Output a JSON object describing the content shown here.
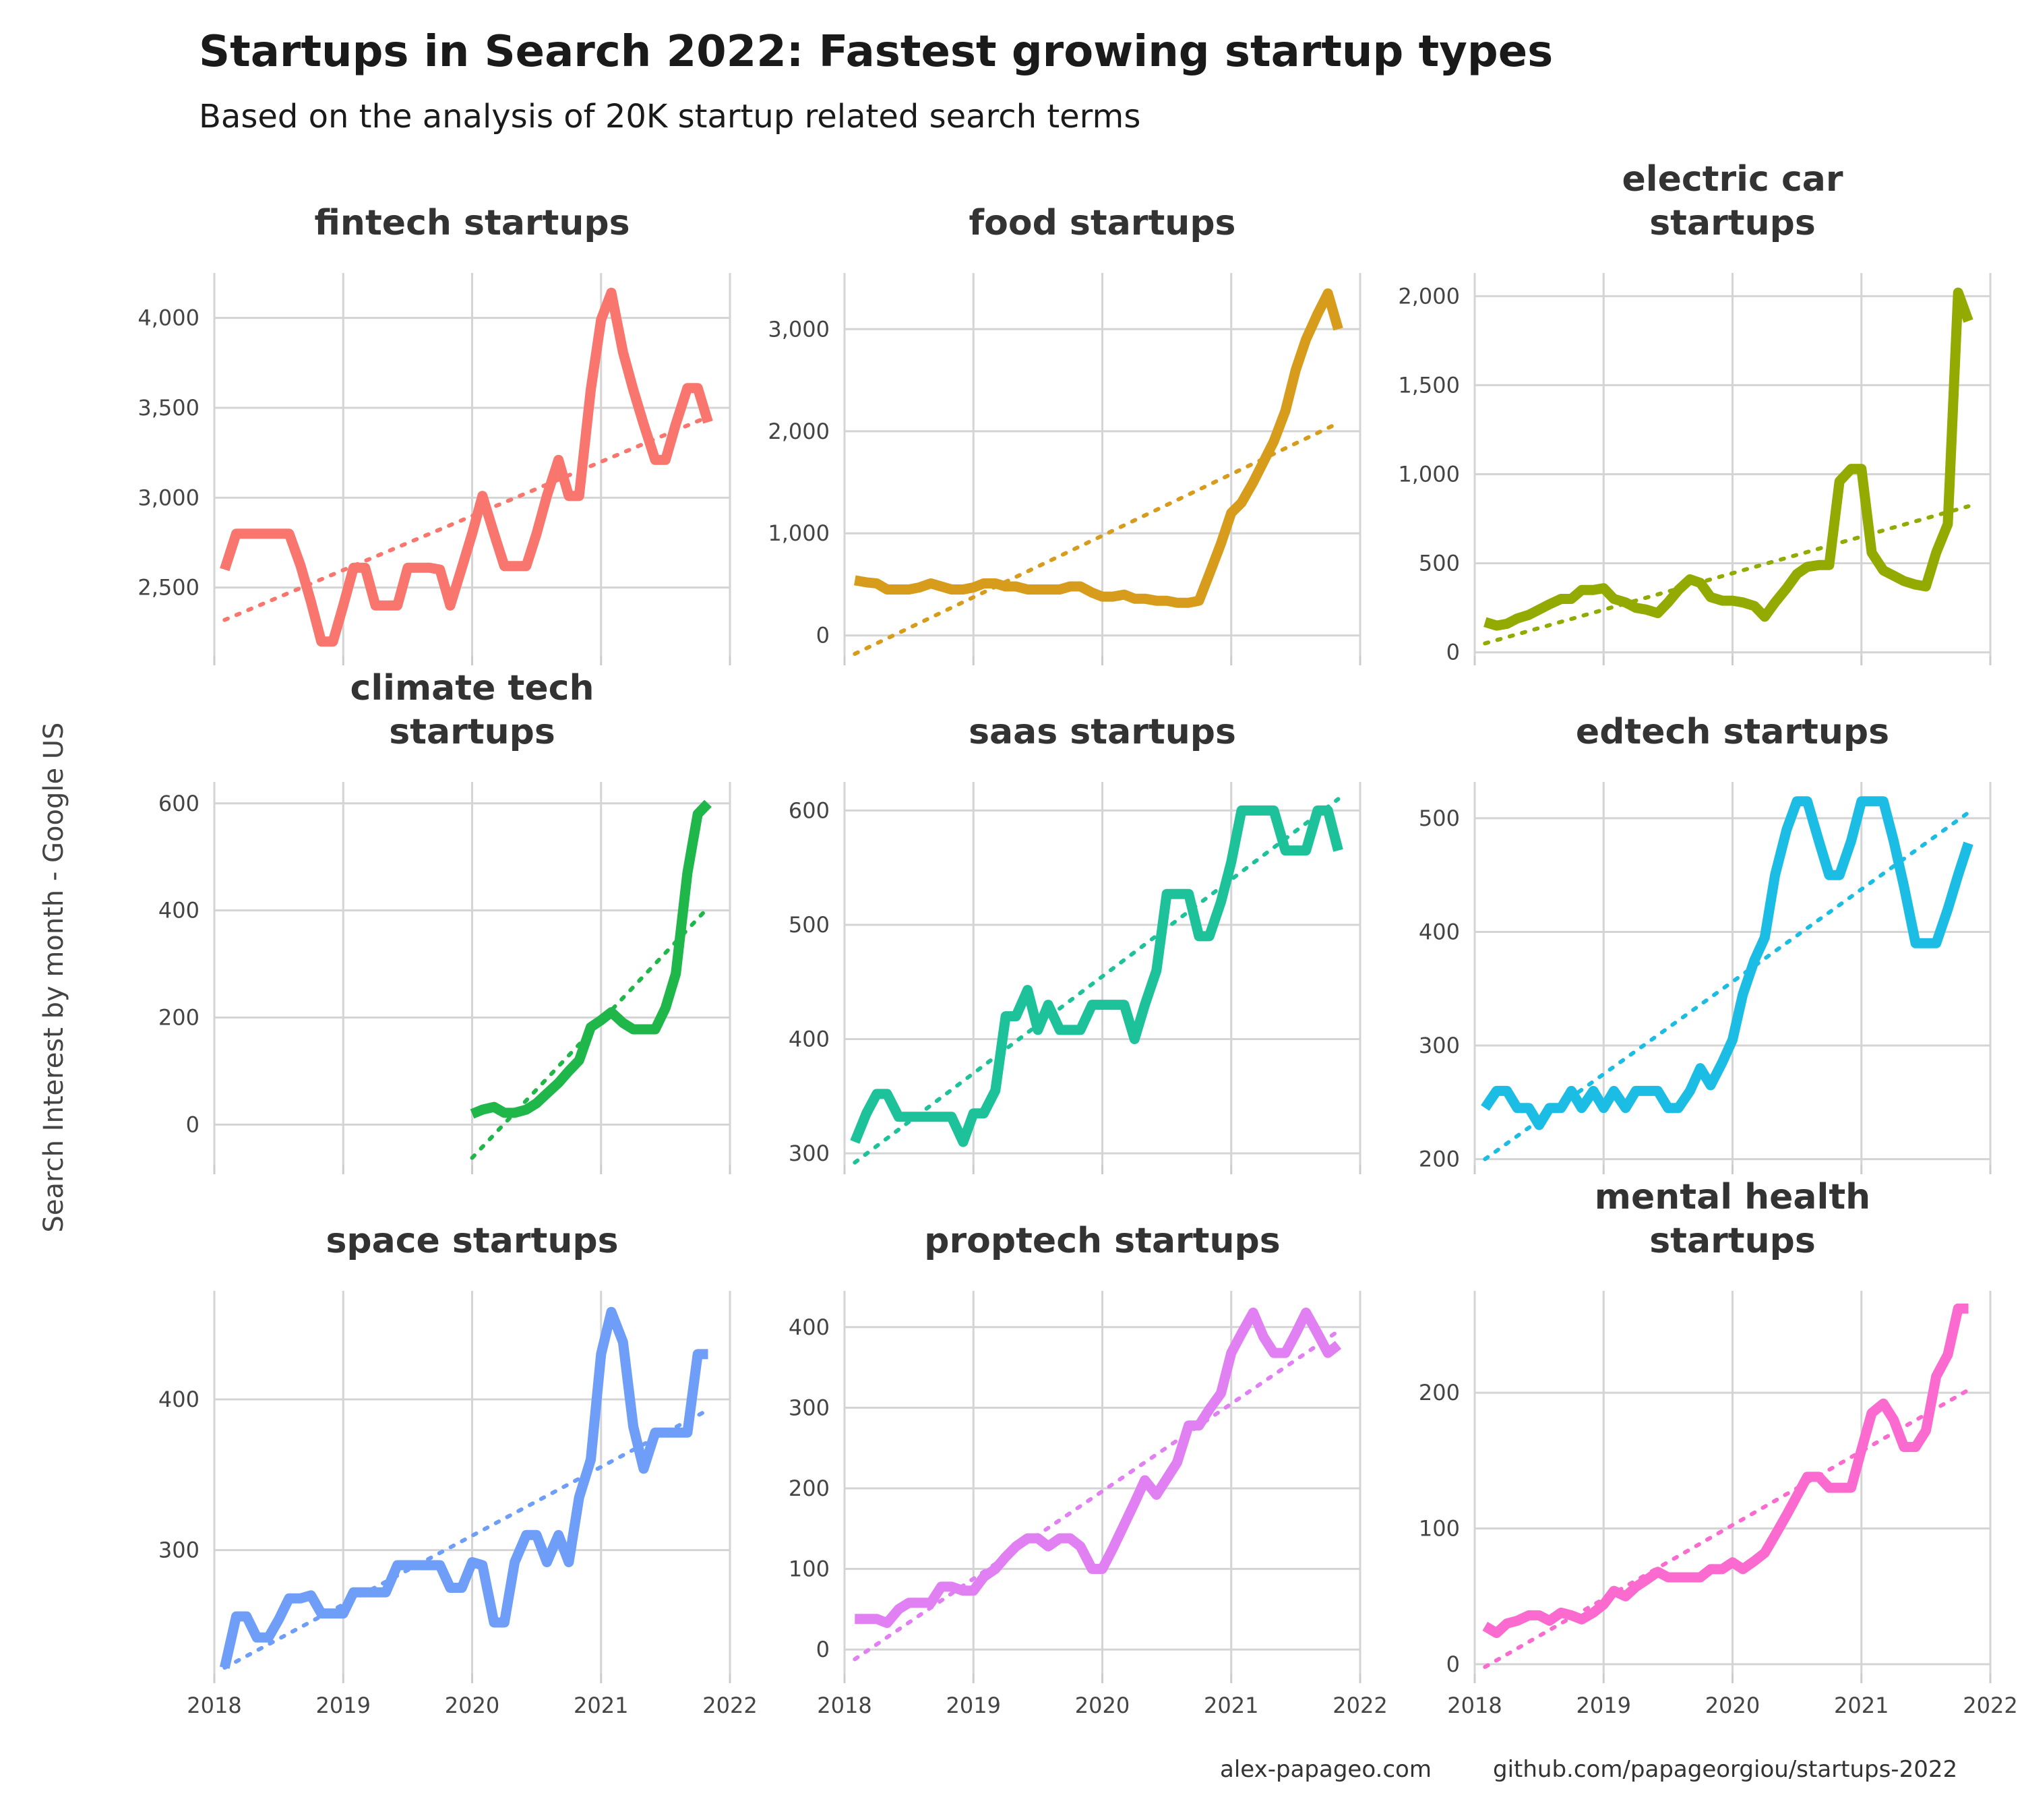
{
  "title": "Startups in Search 2022: Fastest growing startup types",
  "subtitle": "Based on the analysis of 20K startup related search terms",
  "y_axis_label": "Search Interest by month - Google US",
  "captions": [
    "alex-papageo.com",
    "github.com/papageorgiou/startups-2022"
  ],
  "chart_data": [
    {
      "type": "line",
      "title": "fintech startups",
      "title_lines": [
        "fintech startups"
      ],
      "color": "#F8766D",
      "xlim": [
        2018,
        2022
      ],
      "x_ticks": [
        2018,
        2019,
        2020,
        2021,
        2022
      ],
      "ylim": [
        2120,
        4250
      ],
      "y_ticks": [
        2500,
        3000,
        3500,
        4000
      ],
      "y_tick_labels": [
        "2,500",
        "3,000",
        "3,500",
        "4,000"
      ],
      "x": [
        2018.08,
        2018.17,
        2018.25,
        2018.33,
        2018.42,
        2018.5,
        2018.58,
        2018.67,
        2018.75,
        2018.83,
        2018.92,
        2019.0,
        2019.08,
        2019.17,
        2019.25,
        2019.33,
        2019.42,
        2019.5,
        2019.58,
        2019.67,
        2019.75,
        2019.83,
        2019.92,
        2020.0,
        2020.08,
        2020.17,
        2020.25,
        2020.33,
        2020.42,
        2020.5,
        2020.58,
        2020.67,
        2020.75,
        2020.83,
        2020.92,
        2021.0,
        2021.08,
        2021.17,
        2021.25,
        2021.33,
        2021.42,
        2021.5,
        2021.58,
        2021.67,
        2021.75,
        2021.83
      ],
      "values": [
        2600,
        2800,
        2800,
        2800,
        2800,
        2800,
        2800,
        2620,
        2420,
        2200,
        2200,
        2400,
        2610,
        2610,
        2400,
        2400,
        2400,
        2610,
        2610,
        2610,
        2600,
        2400,
        2610,
        2800,
        3010,
        2800,
        2620,
        2620,
        2620,
        2800,
        3010,
        3210,
        3010,
        3010,
        3600,
        3990,
        4140,
        3810,
        3600,
        3410,
        3210,
        3210,
        3410,
        3610,
        3610,
        3420
      ],
      "trend": {
        "x": [
          2018.08,
          2021.83
        ],
        "y": [
          2320,
          3450
        ]
      }
    },
    {
      "type": "line",
      "title": "food startups",
      "title_lines": [
        "food startups"
      ],
      "color": "#D89C1C",
      "xlim": [
        2018,
        2022
      ],
      "x_ticks": [
        2018,
        2019,
        2020,
        2021,
        2022
      ],
      "ylim": [
        -200,
        3550
      ],
      "y_ticks": [
        0,
        1000,
        2000,
        3000
      ],
      "y_tick_labels": [
        "0",
        "1,000",
        "2,000",
        "3,000"
      ],
      "x": [
        2018.08,
        2018.17,
        2018.25,
        2018.33,
        2018.42,
        2018.5,
        2018.58,
        2018.67,
        2018.75,
        2018.83,
        2018.92,
        2019.0,
        2019.08,
        2019.17,
        2019.25,
        2019.33,
        2019.42,
        2019.5,
        2019.58,
        2019.67,
        2019.75,
        2019.83,
        2019.92,
        2020.0,
        2020.08,
        2020.17,
        2020.25,
        2020.33,
        2020.42,
        2020.5,
        2020.58,
        2020.67,
        2020.75,
        2020.83,
        2020.92,
        2021.0,
        2021.08,
        2021.17,
        2021.25,
        2021.33,
        2021.42,
        2021.5,
        2021.58,
        2021.67,
        2021.75,
        2021.83
      ],
      "values": [
        540,
        520,
        510,
        450,
        450,
        450,
        470,
        510,
        480,
        450,
        450,
        470,
        510,
        510,
        480,
        480,
        450,
        450,
        450,
        450,
        480,
        480,
        420,
        380,
        380,
        400,
        360,
        360,
        340,
        340,
        320,
        320,
        340,
        600,
        900,
        1200,
        1300,
        1500,
        1700,
        1900,
        2200,
        2600,
        2900,
        3150,
        3350,
        3000
      ],
      "trend": {
        "x": [
          2018.08,
          2021.83
        ],
        "y": [
          -180,
          2080
        ]
      }
    },
    {
      "type": "line",
      "title": "electric car startups",
      "title_lines": [
        "electric car",
        "startups"
      ],
      "color": "#93AA00",
      "xlim": [
        2018,
        2022
      ],
      "x_ticks": [
        2018,
        2019,
        2020,
        2021,
        2022
      ],
      "ylim": [
        -20,
        2130
      ],
      "y_ticks": [
        0,
        500,
        1000,
        1500,
        2000
      ],
      "y_tick_labels": [
        "0",
        "500",
        "1,000",
        "1,500",
        "2,000"
      ],
      "x": [
        2018.08,
        2018.17,
        2018.25,
        2018.33,
        2018.42,
        2018.5,
        2018.58,
        2018.67,
        2018.75,
        2018.83,
        2018.92,
        2019.0,
        2019.08,
        2019.17,
        2019.25,
        2019.33,
        2019.42,
        2019.5,
        2019.58,
        2019.67,
        2019.75,
        2019.83,
        2019.92,
        2020.0,
        2020.08,
        2020.17,
        2020.25,
        2020.33,
        2020.42,
        2020.5,
        2020.58,
        2020.67,
        2020.75,
        2020.83,
        2020.92,
        2021.0,
        2021.08,
        2021.17,
        2021.25,
        2021.33,
        2021.42,
        2021.5,
        2021.58,
        2021.67,
        2021.75,
        2021.83
      ],
      "values": [
        170,
        150,
        160,
        190,
        210,
        240,
        270,
        300,
        300,
        350,
        350,
        360,
        300,
        280,
        250,
        240,
        220,
        280,
        350,
        410,
        390,
        310,
        290,
        290,
        280,
        260,
        200,
        280,
        360,
        440,
        480,
        490,
        490,
        960,
        1030,
        1030,
        560,
        460,
        430,
        400,
        380,
        370,
        560,
        720,
        2020,
        1860
      ],
      "trend": {
        "x": [
          2018.08,
          2021.83
        ],
        "y": [
          50,
          820
        ]
      }
    },
    {
      "type": "line",
      "title": "climate tech startups",
      "title_lines": [
        "climate tech",
        "startups"
      ],
      "color": "#1FB74A",
      "xlim": [
        2018,
        2022
      ],
      "x_ticks": [
        2018,
        2019,
        2020,
        2021,
        2022
      ],
      "ylim": [
        -75,
        640
      ],
      "y_ticks": [
        0,
        200,
        400,
        600
      ],
      "y_tick_labels": [
        "0",
        "200",
        "400",
        "600"
      ],
      "x": [
        2020.0,
        2020.08,
        2020.17,
        2020.25,
        2020.33,
        2020.42,
        2020.5,
        2020.58,
        2020.67,
        2020.75,
        2020.83,
        2020.92,
        2021.0,
        2021.08,
        2021.17,
        2021.25,
        2021.33,
        2021.42,
        2021.5,
        2021.58,
        2021.67,
        2021.75,
        2021.83
      ],
      "values": [
        20,
        28,
        33,
        22,
        22,
        28,
        40,
        58,
        78,
        100,
        120,
        182,
        195,
        210,
        190,
        178,
        178,
        178,
        218,
        282,
        470,
        580,
        600
      ],
      "trend": {
        "x": [
          2020.0,
          2021.83
        ],
        "y": [
          -62,
          405
        ]
      }
    },
    {
      "type": "line",
      "title": "saas startups",
      "title_lines": [
        "saas startups"
      ],
      "color": "#1DC29A",
      "xlim": [
        2018,
        2022
      ],
      "x_ticks": [
        2018,
        2019,
        2020,
        2021,
        2022
      ],
      "ylim": [
        290,
        625
      ],
      "y_ticks": [
        300,
        400,
        500,
        600
      ],
      "y_tick_labels": [
        "300",
        "400",
        "500",
        "600"
      ],
      "x": [
        2018.08,
        2018.17,
        2018.25,
        2018.33,
        2018.42,
        2018.5,
        2018.58,
        2018.67,
        2018.75,
        2018.83,
        2018.92,
        2019.0,
        2019.08,
        2019.17,
        2019.25,
        2019.33,
        2019.42,
        2019.5,
        2019.58,
        2019.67,
        2019.75,
        2019.83,
        2019.92,
        2020.0,
        2020.08,
        2020.17,
        2020.25,
        2020.33,
        2020.42,
        2020.5,
        2020.58,
        2020.67,
        2020.75,
        2020.83,
        2020.92,
        2021.0,
        2021.08,
        2021.17,
        2021.25,
        2021.33,
        2021.42,
        2021.5,
        2021.58,
        2021.67,
        2021.75,
        2021.83
      ],
      "values": [
        310,
        335,
        352,
        352,
        332,
        332,
        332,
        332,
        332,
        332,
        310,
        335,
        335,
        355,
        420,
        420,
        443,
        408,
        430,
        408,
        408,
        408,
        430,
        430,
        430,
        430,
        400,
        430,
        460,
        527,
        527,
        527,
        490,
        490,
        520,
        555,
        600,
        600,
        600,
        600,
        565,
        565,
        565,
        600,
        600,
        565
      ],
      "trend": {
        "x": [
          2018.08,
          2021.83
        ],
        "y": [
          292,
          610
        ]
      }
    },
    {
      "type": "line",
      "title": "edtech startups",
      "title_lines": [
        "edtech startups"
      ],
      "color": "#1CBDE4",
      "xlim": [
        2018,
        2022
      ],
      "x_ticks": [
        2018,
        2019,
        2020,
        2021,
        2022
      ],
      "ylim": [
        195,
        532
      ],
      "y_ticks": [
        200,
        300,
        400,
        500
      ],
      "y_tick_labels": [
        "200",
        "300",
        "400",
        "500"
      ],
      "x": [
        2018.08,
        2018.17,
        2018.25,
        2018.33,
        2018.42,
        2018.5,
        2018.58,
        2018.67,
        2018.75,
        2018.83,
        2018.92,
        2019.0,
        2019.08,
        2019.17,
        2019.25,
        2019.33,
        2019.42,
        2019.5,
        2019.58,
        2019.67,
        2019.75,
        2019.83,
        2019.92,
        2020.0,
        2020.08,
        2020.17,
        2020.25,
        2020.33,
        2020.42,
        2020.5,
        2020.58,
        2020.67,
        2020.75,
        2020.83,
        2020.92,
        2021.0,
        2021.08,
        2021.17,
        2021.25,
        2021.33,
        2021.42,
        2021.5,
        2021.58,
        2021.67,
        2021.75,
        2021.83
      ],
      "values": [
        245,
        260,
        260,
        245,
        245,
        230,
        245,
        245,
        260,
        245,
        260,
        245,
        260,
        245,
        260,
        260,
        260,
        245,
        245,
        260,
        280,
        265,
        285,
        305,
        345,
        375,
        395,
        450,
        490,
        515,
        515,
        480,
        450,
        450,
        480,
        515,
        515,
        515,
        480,
        440,
        390,
        390,
        390,
        420,
        450,
        478
      ],
      "trend": {
        "x": [
          2018.08,
          2021.83
        ],
        "y": [
          200,
          505
        ]
      }
    },
    {
      "type": "line",
      "title": "space startups",
      "title_lines": [
        "space startups"
      ],
      "color": "#6E9EF8",
      "xlim": [
        2018,
        2022
      ],
      "x_ticks": [
        2018,
        2019,
        2020,
        2021,
        2022
      ],
      "ylim": [
        218,
        472
      ],
      "y_ticks": [
        300,
        400
      ],
      "y_tick_labels": [
        "300",
        "400"
      ],
      "x": [
        2018.08,
        2018.17,
        2018.25,
        2018.33,
        2018.42,
        2018.5,
        2018.58,
        2018.67,
        2018.75,
        2018.83,
        2018.92,
        2019.0,
        2019.08,
        2019.17,
        2019.25,
        2019.33,
        2019.42,
        2019.5,
        2019.58,
        2019.67,
        2019.75,
        2019.83,
        2019.92,
        2020.0,
        2020.08,
        2020.17,
        2020.25,
        2020.33,
        2020.42,
        2020.5,
        2020.58,
        2020.67,
        2020.75,
        2020.83,
        2020.92,
        2021.0,
        2021.08,
        2021.17,
        2021.25,
        2021.33,
        2021.42,
        2021.5,
        2021.58,
        2021.67,
        2021.75,
        2021.83
      ],
      "values": [
        222,
        256,
        256,
        242,
        242,
        254,
        268,
        268,
        270,
        258,
        258,
        258,
        272,
        272,
        272,
        272,
        290,
        290,
        290,
        290,
        290,
        275,
        275,
        292,
        290,
        252,
        252,
        292,
        310,
        310,
        292,
        310,
        292,
        335,
        360,
        430,
        458,
        438,
        382,
        354,
        378,
        378,
        378,
        378,
        430,
        430
      ],
      "trend": {
        "x": [
          2018.08,
          2021.83
        ],
        "y": [
          222,
          393
        ]
      }
    },
    {
      "type": "line",
      "title": "proptech startups",
      "title_lines": [
        "proptech startups"
      ],
      "color": "#E180F2",
      "xlim": [
        2018,
        2022
      ],
      "x_ticks": [
        2018,
        2019,
        2020,
        2021,
        2022
      ],
      "ylim": [
        -30,
        445
      ],
      "y_ticks": [
        0,
        100,
        200,
        300,
        400
      ],
      "y_tick_labels": [
        "0",
        "100",
        "200",
        "300",
        "400"
      ],
      "x": [
        2018.08,
        2018.17,
        2018.25,
        2018.33,
        2018.42,
        2018.5,
        2018.58,
        2018.67,
        2018.75,
        2018.83,
        2018.92,
        2019.0,
        2019.08,
        2019.17,
        2019.25,
        2019.33,
        2019.42,
        2019.5,
        2019.58,
        2019.67,
        2019.75,
        2019.83,
        2019.92,
        2020.0,
        2020.08,
        2020.17,
        2020.25,
        2020.33,
        2020.42,
        2020.5,
        2020.58,
        2020.67,
        2020.75,
        2020.83,
        2020.92,
        2021.0,
        2021.08,
        2021.17,
        2021.25,
        2021.33,
        2021.42,
        2021.5,
        2021.58,
        2021.67,
        2021.75,
        2021.83
      ],
      "values": [
        38,
        38,
        38,
        33,
        50,
        58,
        58,
        58,
        78,
        78,
        73,
        73,
        90,
        100,
        115,
        128,
        138,
        138,
        128,
        138,
        138,
        128,
        100,
        100,
        125,
        155,
        182,
        210,
        192,
        212,
        232,
        278,
        278,
        298,
        318,
        368,
        392,
        418,
        388,
        368,
        368,
        392,
        418,
        392,
        368,
        378
      ],
      "trend": {
        "x": [
          2018.08,
          2021.83
        ],
        "y": [
          -12,
          395
        ]
      }
    },
    {
      "type": "line",
      "title": "mental health startups",
      "title_lines": [
        "mental health",
        "startups"
      ],
      "color": "#FB6BCF",
      "xlim": [
        2018,
        2022
      ],
      "x_ticks": [
        2018,
        2019,
        2020,
        2021,
        2022
      ],
      "ylim": [
        -7,
        275
      ],
      "y_ticks": [
        0,
        100,
        200
      ],
      "y_tick_labels": [
        "0",
        "100",
        "200"
      ],
      "x": [
        2018.08,
        2018.17,
        2018.25,
        2018.33,
        2018.42,
        2018.5,
        2018.58,
        2018.67,
        2018.75,
        2018.83,
        2018.92,
        2019.0,
        2019.08,
        2019.17,
        2019.25,
        2019.33,
        2019.42,
        2019.5,
        2019.58,
        2019.67,
        2019.75,
        2019.83,
        2019.92,
        2020.0,
        2020.08,
        2020.17,
        2020.25,
        2020.33,
        2020.42,
        2020.5,
        2020.58,
        2020.67,
        2020.75,
        2020.83,
        2020.92,
        2021.0,
        2021.08,
        2021.17,
        2021.25,
        2021.33,
        2021.42,
        2021.5,
        2021.58,
        2021.67,
        2021.75,
        2021.83
      ],
      "values": [
        28,
        23,
        30,
        32,
        36,
        36,
        32,
        38,
        36,
        33,
        38,
        44,
        54,
        50,
        57,
        62,
        68,
        64,
        64,
        64,
        64,
        70,
        70,
        75,
        70,
        76,
        82,
        95,
        110,
        124,
        138,
        138,
        130,
        130,
        130,
        158,
        185,
        192,
        180,
        160,
        160,
        172,
        212,
        228,
        262,
        262
      ],
      "trend": {
        "x": [
          2018.08,
          2021.83
        ],
        "y": [
          -2,
          202
        ]
      }
    }
  ]
}
